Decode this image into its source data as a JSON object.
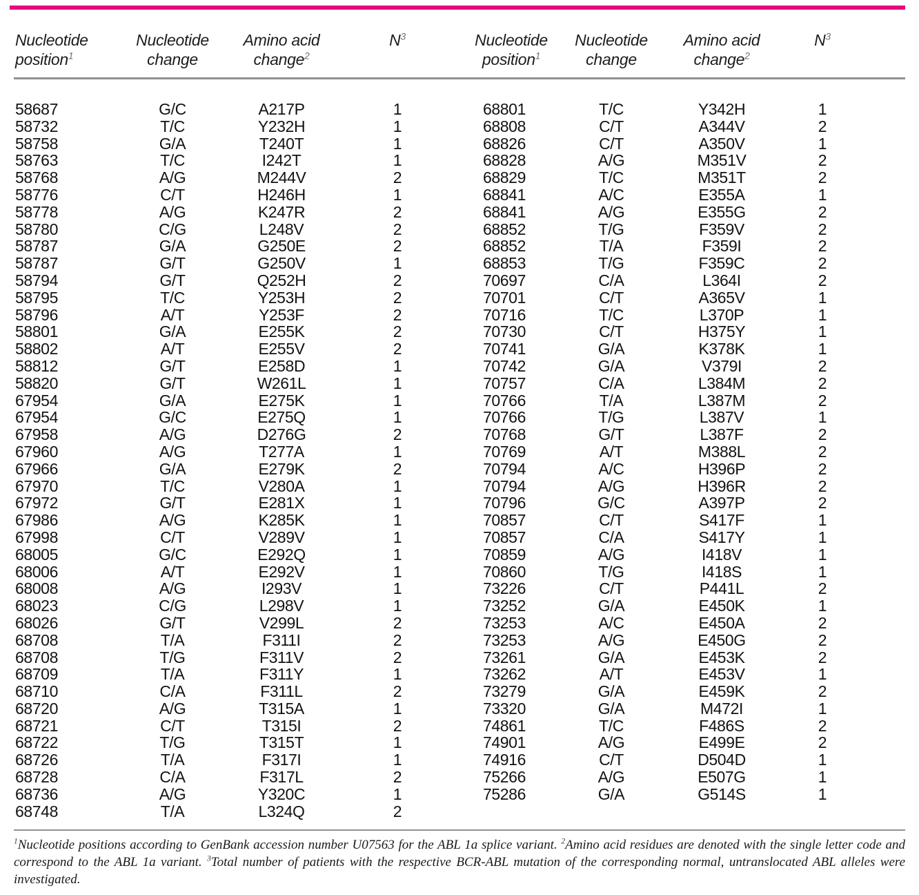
{
  "accent_color": "#e40a7c",
  "rule_color": "#8f8f8f",
  "table": {
    "columns": [
      {
        "line1": "Nucleotide",
        "line1_sup": "",
        "line2": "position",
        "line2_sup": "1"
      },
      {
        "line1": "Nucleotide",
        "line1_sup": "",
        "line2": "change",
        "line2_sup": ""
      },
      {
        "line1": "Amino acid",
        "line1_sup": "",
        "line2": "change",
        "line2_sup": "2"
      },
      {
        "line1": "N",
        "line1_sup": "3",
        "line2": "",
        "line2_sup": ""
      }
    ],
    "column_keys": [
      "nucleotide-position",
      "nucleotide-change",
      "amino-acid-change",
      "patient-count"
    ],
    "left_rows": [
      [
        "58687",
        "G/C",
        "A217P",
        "1"
      ],
      [
        "58732",
        "T/C",
        "Y232H",
        "1"
      ],
      [
        "58758",
        "G/A",
        "T240T",
        "1"
      ],
      [
        "58763",
        "T/C",
        "I242T",
        "1"
      ],
      [
        "58768",
        "A/G",
        "M244V",
        "2"
      ],
      [
        "58776",
        "C/T",
        "H246H",
        "1"
      ],
      [
        "58778",
        "A/G",
        "K247R",
        "2"
      ],
      [
        "58780",
        "C/G",
        "L248V",
        "2"
      ],
      [
        "58787",
        "G/A",
        "G250E",
        "2"
      ],
      [
        "58787",
        "G/T",
        "G250V",
        "1"
      ],
      [
        "58794",
        "G/T",
        "Q252H",
        "2"
      ],
      [
        "58795",
        "T/C",
        "Y253H",
        "2"
      ],
      [
        "58796",
        "A/T",
        "Y253F",
        "2"
      ],
      [
        "58801",
        "G/A",
        "E255K",
        "2"
      ],
      [
        "58802",
        "A/T",
        "E255V",
        "2"
      ],
      [
        "58812",
        "G/T",
        "E258D",
        "1"
      ],
      [
        "58820",
        "G/T",
        "W261L",
        "1"
      ],
      [
        "67954",
        "G/A",
        "E275K",
        "1"
      ],
      [
        "67954",
        "G/C",
        "E275Q",
        "1"
      ],
      [
        "67958",
        "A/G",
        "D276G",
        "2"
      ],
      [
        "67960",
        "A/G",
        "T277A",
        "1"
      ],
      [
        "67966",
        "G/A",
        "E279K",
        "2"
      ],
      [
        "67970",
        "T/C",
        "V280A",
        "1"
      ],
      [
        "67972",
        "G/T",
        "E281X",
        "1"
      ],
      [
        "67986",
        "A/G",
        "K285K",
        "1"
      ],
      [
        "67998",
        "C/T",
        "V289V",
        "1"
      ],
      [
        "68005",
        "G/C",
        "E292Q",
        "1"
      ],
      [
        "68006",
        "A/T",
        "E292V",
        "1"
      ],
      [
        "68008",
        "A/G",
        "I293V",
        "1"
      ],
      [
        "68023",
        "C/G",
        "L298V",
        "1"
      ],
      [
        "68026",
        "G/T",
        "V299L",
        "2"
      ],
      [
        "68708",
        "T/A",
        "F311I",
        "2"
      ],
      [
        "68708",
        "T/G",
        "F311V",
        "2"
      ],
      [
        "68709",
        "T/A",
        "F311Y",
        "1"
      ],
      [
        "68710",
        "C/A",
        "F311L",
        "2"
      ],
      [
        "68720",
        "A/G",
        "T315A",
        "1"
      ],
      [
        "68721",
        "C/T",
        "T315I",
        "2"
      ],
      [
        "68722",
        "T/G",
        "T315T",
        "1"
      ],
      [
        "68726",
        "T/A",
        "F317I",
        "1"
      ],
      [
        "68728",
        "C/A",
        "F317L",
        "2"
      ],
      [
        "68736",
        "A/G",
        "Y320C",
        "1"
      ],
      [
        "68748",
        "T/A",
        "L324Q",
        "2"
      ]
    ],
    "right_rows": [
      [
        "68801",
        "T/C",
        "Y342H",
        "1"
      ],
      [
        "68808",
        "C/T",
        "A344V",
        "2"
      ],
      [
        "68826",
        "C/T",
        "A350V",
        "1"
      ],
      [
        "68828",
        "A/G",
        "M351V",
        "2"
      ],
      [
        "68829",
        "T/C",
        "M351T",
        "2"
      ],
      [
        "68841",
        "A/C",
        "E355A",
        "1"
      ],
      [
        "68841",
        "A/G",
        "E355G",
        "2"
      ],
      [
        "68852",
        "T/G",
        "F359V",
        "2"
      ],
      [
        "68852",
        "T/A",
        "F359I",
        "2"
      ],
      [
        "68853",
        "T/G",
        "F359C",
        "2"
      ],
      [
        "70697",
        "C/A",
        "L364I",
        "2"
      ],
      [
        "70701",
        "C/T",
        "A365V",
        "1"
      ],
      [
        "70716",
        "T/C",
        "L370P",
        "1"
      ],
      [
        "70730",
        "C/T",
        "H375Y",
        "1"
      ],
      [
        "70741",
        "G/A",
        "K378K",
        "1"
      ],
      [
        "70742",
        "G/A",
        "V379I",
        "2"
      ],
      [
        "70757",
        "C/A",
        "L384M",
        "2"
      ],
      [
        "70766",
        "T/A",
        "L387M",
        "2"
      ],
      [
        "70766",
        "T/G",
        "L387V",
        "1"
      ],
      [
        "70768",
        "G/T",
        "L387F",
        "2"
      ],
      [
        "70769",
        "A/T",
        "M388L",
        "2"
      ],
      [
        "70794",
        "A/C",
        "H396P",
        "2"
      ],
      [
        "70794",
        "A/G",
        "H396R",
        "2"
      ],
      [
        "70796",
        "G/C",
        "A397P",
        "2"
      ],
      [
        "70857",
        "C/T",
        "S417F",
        "1"
      ],
      [
        "70857",
        "C/A",
        "S417Y",
        "1"
      ],
      [
        "70859",
        "A/G",
        "I418V",
        "1"
      ],
      [
        "70860",
        "T/G",
        "I418S",
        "1"
      ],
      [
        "73226",
        "C/T",
        "P441L",
        "2"
      ],
      [
        "73252",
        "G/A",
        "E450K",
        "1"
      ],
      [
        "73253",
        "A/C",
        "E450A",
        "2"
      ],
      [
        "73253",
        "A/G",
        "E450G",
        "2"
      ],
      [
        "73261",
        "G/A",
        "E453K",
        "2"
      ],
      [
        "73262",
        "A/T",
        "E453V",
        "1"
      ],
      [
        "73279",
        "G/A",
        "E459K",
        "2"
      ],
      [
        "73320",
        "G/A",
        "M472I",
        "1"
      ],
      [
        "74861",
        "T/C",
        "F486S",
        "2"
      ],
      [
        "74901",
        "A/G",
        "E499E",
        "2"
      ],
      [
        "74916",
        "C/T",
        "D504D",
        "1"
      ],
      [
        "75266",
        "A/G",
        "E507G",
        "1"
      ],
      [
        "75286",
        "G/A",
        "G514S",
        "1"
      ]
    ]
  },
  "footnote": {
    "part1_sup": "1",
    "part1": "Nucleotide positions according to GenBank accession number U07563 for the ABL 1a splice variant. ",
    "part2_sup": "2",
    "part2": "Amino acid residues are denoted with the single letter code and correspond to the ABL 1a variant. ",
    "part3_sup": "3",
    "part3": "Total number of patients with the respective BCR-ABL mutation of the corresponding normal, untranslocated ABL alleles were investigated."
  }
}
